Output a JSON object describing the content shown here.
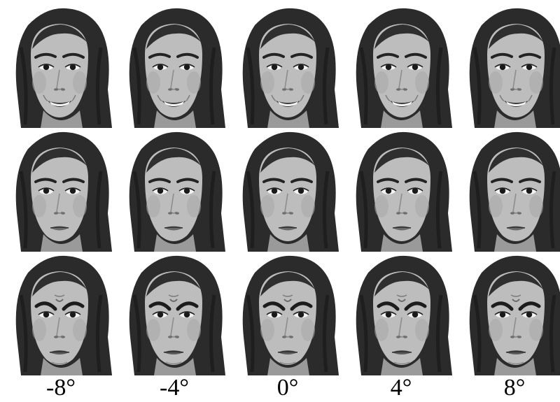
{
  "rows": [
    {
      "expression": "happy"
    },
    {
      "expression": "neutral"
    },
    {
      "expression": "angry"
    }
  ],
  "columns": [
    {
      "label": "-8°"
    },
    {
      "label": "-4°"
    },
    {
      "label": "0°"
    },
    {
      "label": "4°"
    },
    {
      "label": "8°"
    }
  ]
}
